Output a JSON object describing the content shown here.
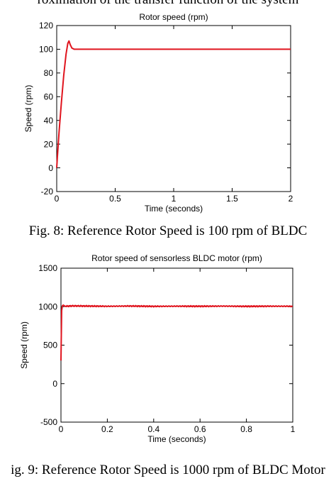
{
  "captions": {
    "top": "roximation of the transfer function of the system",
    "fig8": "Fig. 8: Reference Rotor Speed is 100 rpm of BLDC",
    "fig9": "ig. 9: Reference Rotor Speed is 1000 rpm of BLDC Motor"
  },
  "colors": {
    "series": "#e0141e",
    "axes": "#000000",
    "background": "#ffffff"
  },
  "chart_data": [
    {
      "type": "line",
      "title": "Rotor speed (rpm)",
      "xlabel": "Time (seconds)",
      "ylabel": "Speed (rpm)",
      "xlim": [
        0,
        2
      ],
      "ylim": [
        -20,
        120
      ],
      "xticks": [
        0,
        0.5,
        1,
        1.5,
        2
      ],
      "xtick_labels": [
        "0",
        "0.5",
        "1",
        "1.5",
        "2"
      ],
      "yticks": [
        -20,
        0,
        20,
        40,
        60,
        80,
        100,
        120
      ],
      "ytick_labels": [
        "-20",
        "0",
        "20",
        "40",
        "60",
        "80",
        "100",
        "120"
      ],
      "grid": false,
      "series": [
        {
          "x": [
            0,
            0.005,
            0.02,
            0.04,
            0.06,
            0.08,
            0.095,
            0.105,
            0.115,
            0.13,
            0.15,
            0.18,
            0.22,
            0.3,
            0.5,
            1,
            1.5,
            2
          ],
          "y": [
            0,
            8,
            30,
            55,
            78,
            96,
            105,
            107,
            104,
            101,
            100,
            100,
            100,
            100,
            100,
            100,
            100,
            100
          ]
        }
      ]
    },
    {
      "type": "line",
      "title": "Rotor speed of sensorless BLDC motor (rpm)",
      "xlabel": "Time (seconds)",
      "ylabel": "Speed (rpm)",
      "xlim": [
        0,
        1
      ],
      "ylim": [
        -500,
        1500
      ],
      "xticks": [
        0,
        0.2,
        0.4,
        0.6,
        0.8,
        1
      ],
      "xtick_labels": [
        "0",
        "0.2",
        "0.4",
        "0.6",
        "0.8",
        "1"
      ],
      "yticks": [
        -500,
        0,
        500,
        1000,
        1500
      ],
      "ytick_labels": [
        "-500",
        "0",
        "500",
        "1000",
        "1500"
      ],
      "grid": false,
      "series": [
        {
          "x": [
            0,
            0.003,
            0.006,
            0.01,
            0.02,
            0.05,
            0.1,
            0.2,
            0.3,
            0.4,
            0.5,
            0.6,
            0.7,
            0.8,
            0.9,
            1
          ],
          "y": [
            300,
            950,
            1010,
            1020,
            1005,
            1010,
            1008,
            1005,
            1008,
            1004,
            1006,
            1005,
            1007,
            1004,
            1006,
            1005
          ]
        }
      ]
    }
  ]
}
